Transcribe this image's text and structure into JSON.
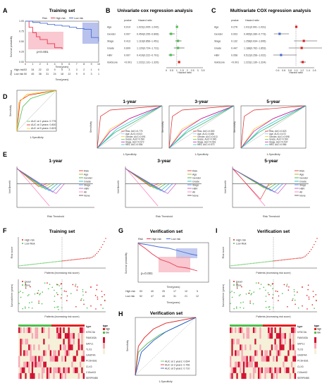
{
  "panels": {
    "A": {
      "letter": "A",
      "title": "Training set",
      "legend_risk": "Risk",
      "legend_high": "High risk",
      "legend_low": "Low risk",
      "ylabel": "Survival probability",
      "xlabel": "Time(years)",
      "pvalue": "p<0.001",
      "table_xlabel": "Time(years)",
      "table_rows": [
        "High risk",
        "Low risk"
      ],
      "table_ylabel": "Risk",
      "x_ticks": [
        "0",
        "1",
        "2",
        "3",
        "4",
        "5",
        "6",
        "7",
        "8",
        "9",
        "10"
      ],
      "y_ticks": [
        "0.00",
        "0.25",
        "0.50",
        "0.75",
        "1.00"
      ],
      "counts_high": [
        "53",
        "34",
        "22",
        "13",
        "9",
        "5",
        "3",
        "3",
        "2",
        "1",
        "0"
      ],
      "counts_low": [
        "50",
        "45",
        "38",
        "31",
        "24",
        "18",
        "12",
        "9",
        "5",
        "3",
        "1"
      ]
    },
    "B": {
      "letter": "B",
      "title": "Univariate cox regression analysis",
      "col_p": "pvalue",
      "col_hr": "Hazard ratio",
      "xlabel": "Hazard ratio",
      "x_ticks": [
        "0",
        "0.5",
        "1",
        "1.5",
        "2",
        "2.5",
        "3",
        "3.5"
      ],
      "rows": [
        {
          "name": "Age",
          "p": "0.014",
          "hr": "1.023(1.005~1.042)",
          "est": 1.02,
          "lo": 1.005,
          "hi": 1.042
        },
        {
          "name": "Gender",
          "p": "0.007",
          "hr": "0.454(0.255~0.806)",
          "est": 0.454,
          "lo": 0.255,
          "hi": 0.806
        },
        {
          "name": "Stage",
          "p": "0.413",
          "hr": "1.116(0.858~1.451)",
          "est": 1.116,
          "lo": 0.858,
          "hi": 1.451
        },
        {
          "name": "Grade",
          "p": "0.609",
          "hr": "1.120(0.724~1.731)",
          "est": 1.12,
          "lo": 0.724,
          "hi": 1.731
        },
        {
          "name": "HBV",
          "p": "0.007",
          "hr": "0.419(0.222~0.791)",
          "est": 0.419,
          "lo": 0.222,
          "hi": 0.791
        },
        {
          "name": "riskScore",
          "p": "<0.001",
          "hr": "1.222(1.131~1.320)",
          "est": 1.222,
          "lo": 1.131,
          "hi": 1.32
        }
      ]
    },
    "C": {
      "letter": "C",
      "title": "Multivariate COX regression analysis",
      "col_p": "pvalue",
      "col_hr": "Hazard ratio",
      "xlabel": "Hazard ratio",
      "x_ticks": [
        "0.4",
        "0.6",
        "0.8",
        "1.0",
        "1.2",
        "1.4",
        "1.6"
      ],
      "rows": [
        {
          "name": "Age",
          "p": "0.276",
          "hr": "1.011(0.991~1.031)",
          "est": 1.011,
          "lo": 0.991,
          "hi": 1.031
        },
        {
          "name": "Gender",
          "p": "0.003",
          "hr": "0.465(0.280~0.773)",
          "est": 0.465,
          "lo": 0.28,
          "hi": 0.773
        },
        {
          "name": "Stage",
          "p": "0.132",
          "hr": "1.258(0.934~1.695)",
          "est": 1.258,
          "lo": 0.934,
          "hi": 1.695
        },
        {
          "name": "Grade",
          "p": "0.447",
          "hr": "1.188(0.762~1.853)",
          "est": 1.188,
          "lo": 0.762,
          "hi": 1.853
        },
        {
          "name": "HBV",
          "p": "0.058",
          "hr": "0.512(0.256~1.022)",
          "est": 0.512,
          "lo": 0.256,
          "hi": 1.022
        },
        {
          "name": "riskScore",
          "p": "<0.001",
          "hr": "1.223(1.130~1.324)",
          "est": 1.223,
          "lo": 1.13,
          "hi": 1.324
        }
      ]
    },
    "D": {
      "letter": "D",
      "xlabel": "1-Specificity",
      "ylabel": "Sensitivity",
      "roc_time": {
        "auc_labels": [
          "AUC at 1 years: 0.775",
          "AUC at 3 years: 0.800",
          "AUC at 5 years: 0.823"
        ]
      },
      "sub_titles": [
        "1-year",
        "3-year",
        "5-year"
      ],
      "sub_legends": [
        [
          "Risk, AUC=0.775",
          "Age, AUC=0.513",
          "Gender, AUC=0.591",
          "Grade, AUC=0.530",
          "Stage, AUC=0.572",
          "HBV, AUC=0.554"
        ],
        [
          "Risk, AUC=0.800",
          "Age, AUC=0.488",
          "Gender, AUC=0.613",
          "Grade, AUC=0.545",
          "Stage, AUC=0.561",
          "HBV, AUC=0.573"
        ],
        [
          "Risk, AUC=0.823",
          "Age, AUC=0.472",
          "Gender, AUC=0.598",
          "Grade, AUC=0.520",
          "Stage, AUC=0.547",
          "HBV, AUC=0.566"
        ]
      ]
    },
    "E": {
      "letter": "E",
      "xlabel": "Risk Threshold",
      "ylabel": "Net Benefit",
      "sub_titles": [
        "1-year",
        "3-year",
        "5-year"
      ],
      "legend": [
        "Risk",
        "Age",
        "Gender",
        "Grade",
        "Stage",
        "HBV",
        "All",
        "None"
      ]
    },
    "F": {
      "letter": "F",
      "title": "Training set",
      "legend_high": "High risk",
      "legend_low": "Low Risk",
      "ylabel1": "Risk score",
      "xlabel1": "Patients (increasing risk score)",
      "legend_dead": "Dead",
      "legend_alive": "Alive",
      "ylabel2": "Survival time (years)",
      "xlabel2": "Patients (increasing risk score)",
      "heat_type": "type",
      "heat_type_low": "low",
      "heat_type_high": "high",
      "genes": [
        "NT5C3A",
        "FAM163A",
        "SAPL1",
        "TLX3",
        "GASP4A",
        "PCDH1B1",
        "CLX3",
        "C15orf43",
        "SERPINB5"
      ]
    },
    "G": {
      "letter": "G",
      "title": "Verification set",
      "legend_risk": "Risk",
      "legend_high": "High risk",
      "legend_low": "Low risk",
      "ylabel": "Survival probability",
      "xlabel": "Time(years)",
      "pvalue": "p=0.001",
      "table_xlabel": "Time(years)",
      "table_rows": [
        "High risk",
        "Low risk"
      ],
      "counts_high": [
        "53",
        "40",
        "25",
        "17",
        "10",
        "5"
      ],
      "counts_low": [
        "52",
        "47",
        "40",
        "31",
        "21",
        "12"
      ]
    },
    "H": {
      "letter": "H",
      "title": "Verification set",
      "xlabel": "1-Specificity",
      "ylabel": "Sensitivity",
      "auc_labels": [
        "AUC at 1 years: 0.694",
        "AUC at 3 years: 0.766",
        "AUC at 5 years: 0.710"
      ]
    },
    "I": {
      "letter": "I",
      "title": "Verification set",
      "legend_high": "High risk",
      "legend_low": "Low Risk",
      "ylabel1": "Risk score",
      "xlabel1": "Patients (increasing risk score)",
      "legend_dead": "Dead",
      "legend_alive": "Alive",
      "ylabel2": "Survival time (years)",
      "xlabel2": "Patients (increasing risk score)",
      "heat_type": "type",
      "heat_type_low": "low",
      "heat_type_high": "high",
      "genes": [
        "NT5C3A",
        "FAM163A",
        "SAPL1",
        "TLX3",
        "GASP4A",
        "PCDH1B1",
        "CLX3",
        "C15orf43",
        "SERPINB5"
      ]
    }
  },
  "colors": {
    "high": "#e8364f",
    "low": "#4a6cd4",
    "green": "#4cc04c",
    "red": "#e02020"
  },
  "chart_data": [
    {
      "panel": "A",
      "type": "line",
      "title": "Training set",
      "xlabel": "Time(years)",
      "ylabel": "Survival probability",
      "xlim": [
        0,
        10
      ],
      "ylim": [
        0,
        1
      ],
      "series": [
        {
          "name": "High risk",
          "x": [
            0,
            0.5,
            1,
            1.5,
            2,
            3,
            4,
            5
          ],
          "y": [
            1,
            0.85,
            0.72,
            0.62,
            0.55,
            0.45,
            0.35,
            0.32
          ]
        },
        {
          "name": "Low risk",
          "x": [
            0,
            1,
            2,
            3,
            4,
            5,
            6,
            7,
            8,
            9,
            10
          ],
          "y": [
            1,
            0.97,
            0.95,
            0.92,
            0.9,
            0.88,
            0.85,
            0.82,
            0.8,
            0.6,
            0.5
          ]
        }
      ]
    },
    {
      "panel": "H",
      "type": "line",
      "title": "Verification set",
      "xlabel": "1-Specificity",
      "ylabel": "Sensitivity",
      "xlim": [
        0,
        1
      ],
      "ylim": [
        0,
        1
      ],
      "series": [
        {
          "name": "AUC at 1 years: 0.694",
          "x": [
            0,
            0.05,
            0.2,
            0.4,
            0.6,
            1
          ],
          "y": [
            0,
            0.4,
            0.55,
            0.7,
            0.8,
            1
          ]
        },
        {
          "name": "AUC at 3 years: 0.766",
          "x": [
            0,
            0.05,
            0.15,
            0.3,
            0.5,
            1
          ],
          "y": [
            0,
            0.5,
            0.65,
            0.8,
            0.9,
            1
          ]
        },
        {
          "name": "AUC at 5 years: 0.710",
          "x": [
            0,
            0.1,
            0.3,
            0.5,
            0.7,
            1
          ],
          "y": [
            0,
            0.4,
            0.6,
            0.75,
            0.85,
            1
          ]
        }
      ]
    }
  ]
}
